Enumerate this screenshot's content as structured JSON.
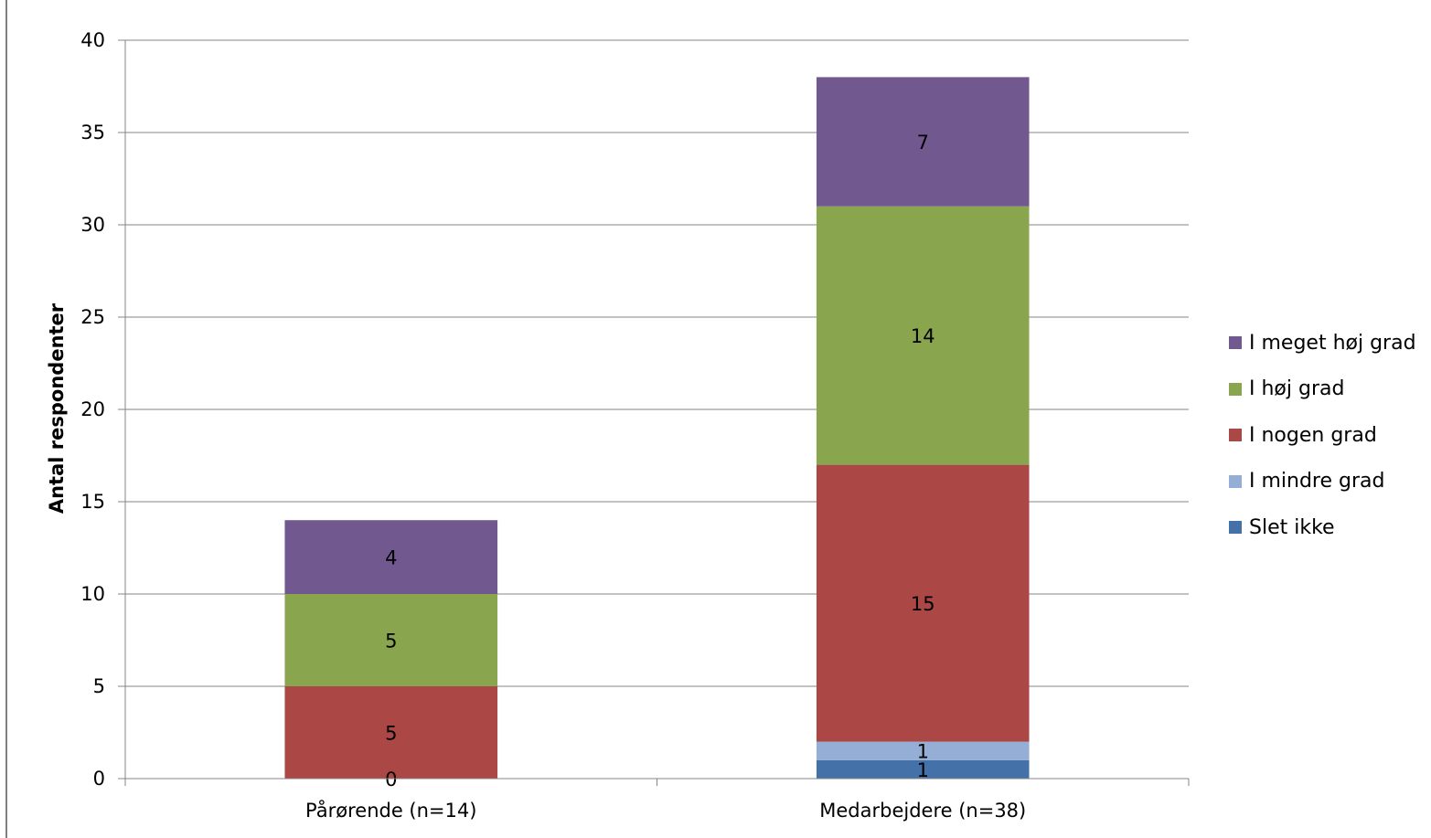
{
  "chart_data": {
    "type": "bar",
    "stacked": true,
    "title": "",
    "xlabel": "",
    "ylabel": "Antal respondenter",
    "ylim": [
      0,
      40
    ],
    "yticks": [
      0,
      5,
      10,
      15,
      20,
      25,
      30,
      35,
      40
    ],
    "categories": [
      "Pårørende (n=14)",
      "Medarbejdere (n=38)"
    ],
    "series": [
      {
        "name": "Slet ikke",
        "color": "#4472a8",
        "values": [
          0,
          1
        ]
      },
      {
        "name": "I mindre grad",
        "color": "#95aed6",
        "values": [
          0,
          1
        ]
      },
      {
        "name": "I nogen grad",
        "color": "#ab4745",
        "values": [
          5,
          15
        ]
      },
      {
        "name": "I høj grad",
        "color": "#89a54e",
        "values": [
          5,
          14
        ]
      },
      {
        "name": "I meget høj grad",
        "color": "#71588f",
        "values": [
          4,
          7
        ]
      }
    ],
    "data_labels": [
      [
        "0",
        "1"
      ],
      [
        null,
        "1"
      ],
      [
        "5",
        "15"
      ],
      [
        "5",
        "14"
      ],
      [
        "4",
        "7"
      ]
    ],
    "grid": true,
    "legend_position": "right"
  }
}
